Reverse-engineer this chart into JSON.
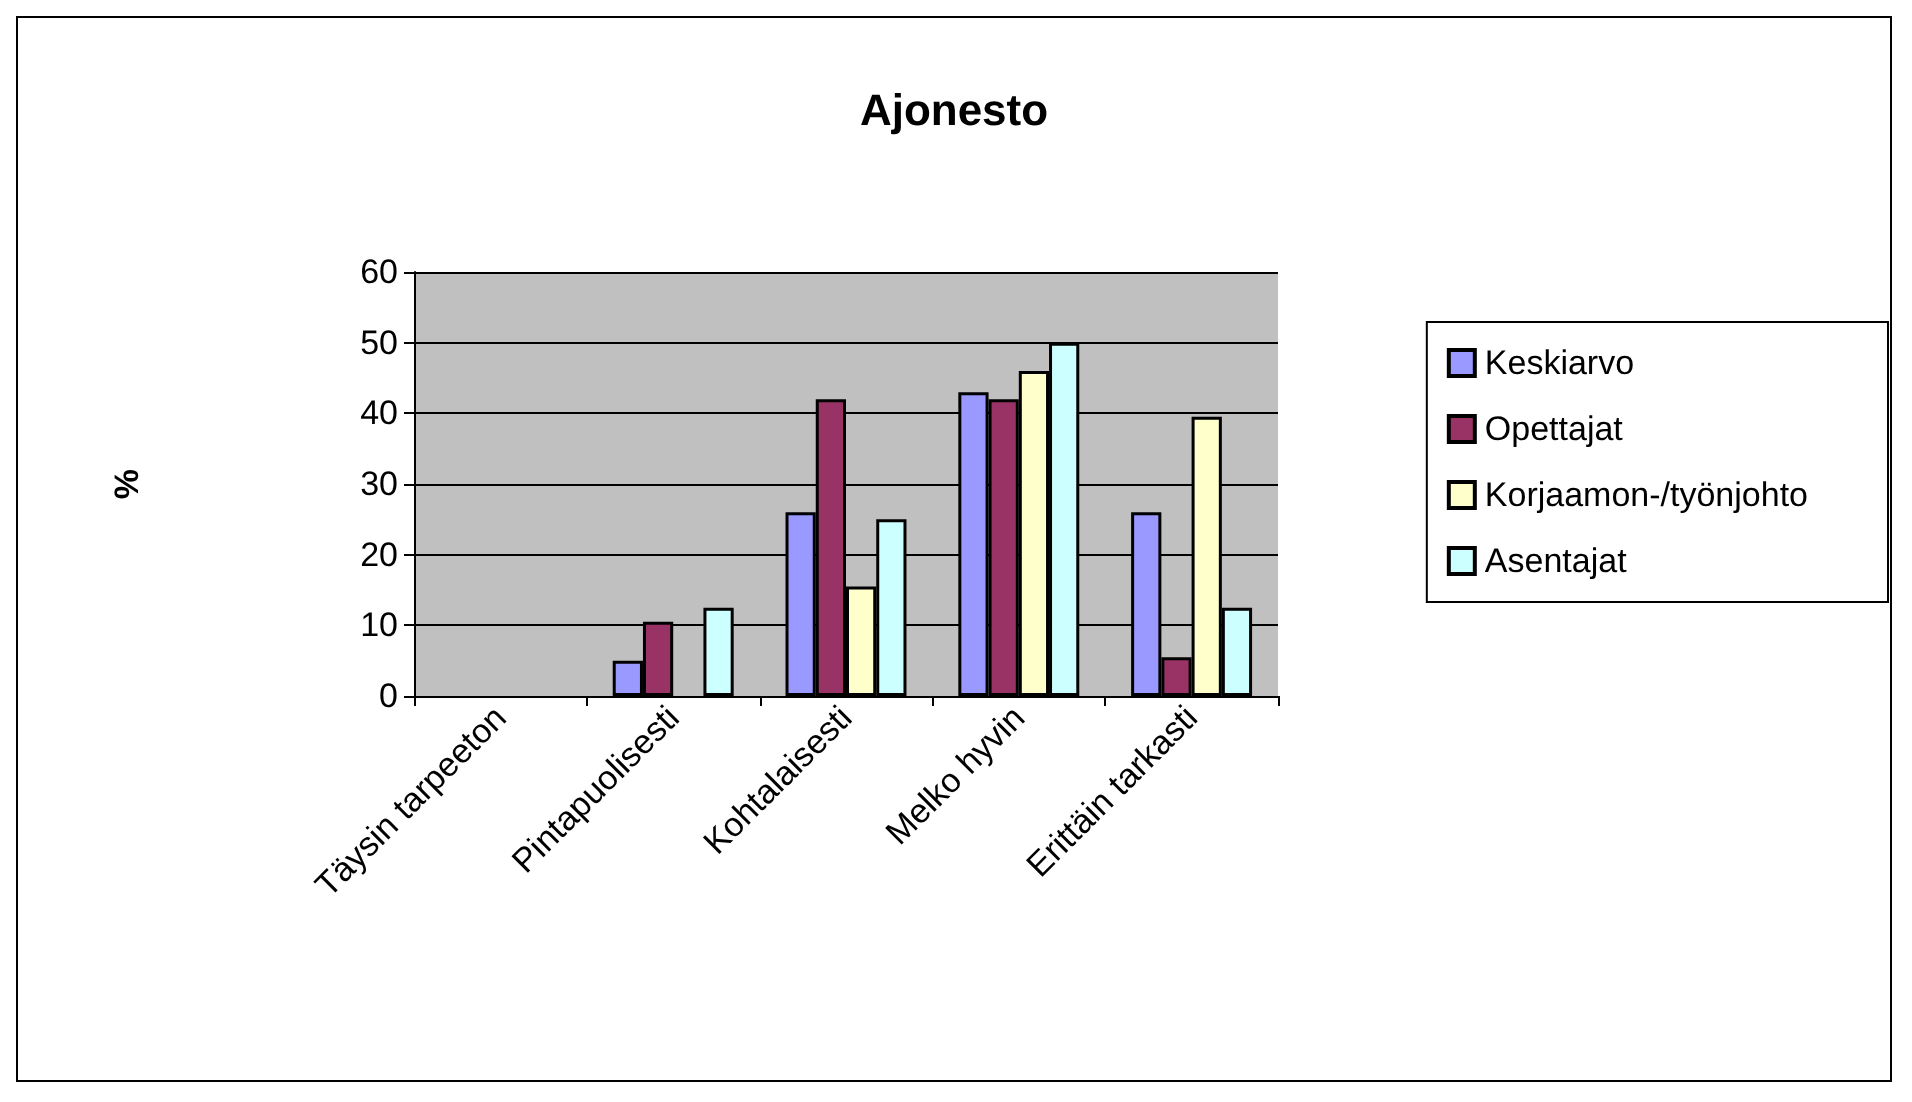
{
  "chart_data": {
    "type": "bar",
    "title": "Ajonesto",
    "ylabel": "%",
    "categories": [
      "Täysin tarpeeton",
      "Pintapuolisesti",
      "Kohtalaisesti",
      "Melko hyvin",
      "Erittäin tarkasti"
    ],
    "series": [
      {
        "name": "Keskiarvo",
        "color": "#9999ff",
        "values": [
          0,
          5,
          26,
          43,
          26
        ]
      },
      {
        "name": "Opettajat",
        "color": "#993366",
        "values": [
          0,
          10.5,
          42,
          42,
          5.5
        ]
      },
      {
        "name": "Korjaamon-/työnjohto",
        "color": "#ffffcc",
        "values": [
          0,
          0,
          15.5,
          46,
          39.5
        ]
      },
      {
        "name": "Asentajat",
        "color": "#ccffff",
        "values": [
          0,
          12.5,
          25,
          50,
          12.5
        ]
      }
    ],
    "ylim": [
      0,
      60
    ],
    "yticks": [
      0,
      10,
      20,
      30,
      40,
      50,
      60
    ],
    "grid": "y",
    "legend": "right"
  }
}
